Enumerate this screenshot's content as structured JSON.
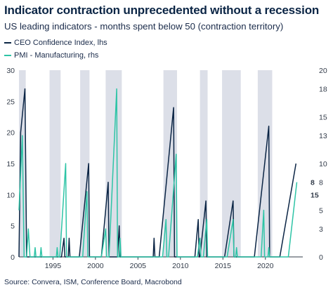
{
  "title": "Indicator contraction unprecedented without a recession",
  "subtitle": "US leading indicators - months spent below 50 (contraction territory)",
  "source": "Source: Convera, ISM, Conference Board, Macrobond",
  "colors": {
    "ceo": "#0b2545",
    "pmi": "#2ec4a6",
    "recession": "#dcdfe8",
    "last_pmi_label": "#2ec4a6"
  },
  "chart_data": {
    "type": "line",
    "x_ticks": [
      1995,
      2000,
      2005,
      2010,
      2015,
      2020
    ],
    "xlim": [
      1991.0,
      2024.4
    ],
    "y_left": {
      "lim": [
        0,
        30
      ],
      "ticks": [
        0,
        5,
        10,
        15,
        20,
        25,
        30
      ]
    },
    "y_right": {
      "lim": [
        0,
        20
      ],
      "ticks": [
        0,
        3,
        5,
        8,
        10,
        13,
        15,
        18,
        20
      ]
    },
    "shaded_periods": [
      [
        1991.0,
        1991.8
      ],
      [
        1994.6,
        1995.9
      ],
      [
        1998.2,
        1999.3
      ],
      [
        2001.2,
        2003.1
      ],
      [
        2008.0,
        2009.6
      ],
      [
        2012.3,
        2013.2
      ],
      [
        2014.9,
        2017.1
      ],
      [
        2019.1,
        2020.8
      ]
    ],
    "series": [
      {
        "name": "CEO Confidence Index, lhs",
        "axis": "left",
        "points": [
          [
            1991.0,
            0
          ],
          [
            1991.2,
            20
          ],
          [
            1991.7,
            27
          ],
          [
            1991.9,
            0
          ],
          [
            1996.0,
            0
          ],
          [
            1996.3,
            3
          ],
          [
            1996.4,
            0
          ],
          [
            1996.8,
            0
          ],
          [
            1996.9,
            3
          ],
          [
            1997.0,
            0
          ],
          [
            1998.1,
            0
          ],
          [
            1999.2,
            15
          ],
          [
            1999.3,
            0
          ],
          [
            2000.7,
            0
          ],
          [
            2001.5,
            12
          ],
          [
            2001.6,
            0
          ],
          [
            2002.6,
            0
          ],
          [
            2002.8,
            5
          ],
          [
            2002.9,
            0
          ],
          [
            2006.8,
            0
          ],
          [
            2006.9,
            3
          ],
          [
            2007.0,
            0
          ],
          [
            2007.5,
            0
          ],
          [
            2009.2,
            24
          ],
          [
            2009.3,
            0
          ],
          [
            2011.7,
            0
          ],
          [
            2012.1,
            6
          ],
          [
            2012.2,
            0
          ],
          [
            2012.3,
            0
          ],
          [
            2013.0,
            9
          ],
          [
            2013.1,
            0
          ],
          [
            2015.2,
            0
          ],
          [
            2016.2,
            9
          ],
          [
            2016.3,
            0
          ],
          [
            2018.7,
            0
          ],
          [
            2020.4,
            21
          ],
          [
            2020.5,
            0
          ],
          [
            2021.7,
            0
          ],
          [
            2023.6,
            15
          ]
        ]
      },
      {
        "name": "PMI - Manufacturing, rhs",
        "axis": "right",
        "points": [
          [
            1991.0,
            5
          ],
          [
            1991.4,
            13
          ],
          [
            1991.6,
            0
          ],
          [
            1991.9,
            0
          ],
          [
            1992.1,
            3
          ],
          [
            1992.3,
            0
          ],
          [
            1992.8,
            0
          ],
          [
            1992.9,
            1
          ],
          [
            1993.0,
            0
          ],
          [
            1993.5,
            0
          ],
          [
            1993.6,
            1
          ],
          [
            1993.7,
            0
          ],
          [
            1995.4,
            0
          ],
          [
            1995.5,
            1
          ],
          [
            1995.6,
            0
          ],
          [
            1995.8,
            0
          ],
          [
            1996.5,
            10
          ],
          [
            1996.6,
            0
          ],
          [
            1998.5,
            0
          ],
          [
            1999.0,
            7
          ],
          [
            1999.1,
            0
          ],
          [
            2000.7,
            0
          ],
          [
            2001.2,
            3
          ],
          [
            2001.3,
            0
          ],
          [
            2001.6,
            0
          ],
          [
            2002.5,
            18
          ],
          [
            2002.6,
            0
          ],
          [
            2002.8,
            0
          ],
          [
            2002.9,
            2
          ],
          [
            2003.0,
            0
          ],
          [
            2007.9,
            0
          ],
          [
            2008.3,
            4
          ],
          [
            2008.4,
            0
          ],
          [
            2008.6,
            0
          ],
          [
            2009.5,
            11
          ],
          [
            2009.6,
            0
          ],
          [
            2012.0,
            0
          ],
          [
            2012.3,
            2
          ],
          [
            2012.4,
            0
          ],
          [
            2012.7,
            0
          ],
          [
            2013.1,
            4
          ],
          [
            2013.2,
            0
          ],
          [
            2015.5,
            0
          ],
          [
            2016.2,
            4
          ],
          [
            2016.3,
            0
          ],
          [
            2016.5,
            0
          ],
          [
            2016.6,
            1
          ],
          [
            2016.7,
            0
          ],
          [
            2019.5,
            0
          ],
          [
            2019.8,
            5
          ],
          [
            2019.9,
            0
          ],
          [
            2020.3,
            0
          ],
          [
            2020.4,
            1
          ],
          [
            2020.5,
            0
          ],
          [
            2022.7,
            0
          ],
          [
            2023.7,
            8
          ]
        ]
      }
    ],
    "last_value_labels": [
      {
        "series": 0,
        "text": "15"
      },
      {
        "series": 1,
        "text": "8"
      }
    ]
  }
}
